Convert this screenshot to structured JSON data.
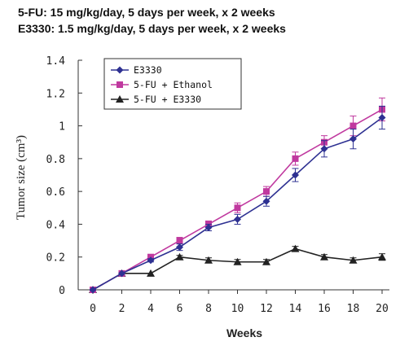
{
  "chart_data": {
    "type": "line",
    "title_lines": [
      "5-FU:    15 mg/kg/day, 5 days per week, x 2 weeks",
      "E3330: 1.5 mg/kg/day, 5 days per week, x 2 weeks"
    ],
    "xlabel": "Weeks",
    "ylabel": "Tumor size (cm³)",
    "xlim": [
      0,
      20
    ],
    "ylim": [
      0,
      1.4
    ],
    "x_ticks": [
      "0",
      "2",
      "4",
      "6",
      "8",
      "10",
      "12",
      "14",
      "16",
      "18",
      "20"
    ],
    "y_ticks": [
      "0",
      "0.2",
      "0.4",
      "0.6",
      "0.8",
      "1",
      "1.2",
      "1.4"
    ],
    "x": [
      0,
      2,
      4,
      6,
      8,
      10,
      12,
      14,
      16,
      18,
      20
    ],
    "grid": false,
    "legend_position": "top-left",
    "series": [
      {
        "name": "E3330",
        "color": "#2e3192",
        "marker": "diamond",
        "values": [
          0,
          0.1,
          0.18,
          0.26,
          0.38,
          0.43,
          0.54,
          0.7,
          0.86,
          0.92,
          1.05
        ],
        "errors": [
          0,
          0,
          0.01,
          0.02,
          0.02,
          0.03,
          0.03,
          0.04,
          0.05,
          0.06,
          0.07
        ]
      },
      {
        "name": "5-FU + Ethanol",
        "color": "#c0399f",
        "marker": "square",
        "values": [
          0,
          0.1,
          0.2,
          0.3,
          0.4,
          0.5,
          0.6,
          0.8,
          0.9,
          1.0,
          1.1
        ],
        "errors": [
          0,
          0,
          0.01,
          0.02,
          0.02,
          0.03,
          0.03,
          0.04,
          0.04,
          0.06,
          0.07
        ]
      },
      {
        "name": "5-FU + E3330",
        "color": "#222222",
        "marker": "triangle",
        "values": [
          0,
          0.1,
          0.1,
          0.2,
          0.18,
          0.17,
          0.17,
          0.25,
          0.2,
          0.18,
          0.2
        ],
        "errors": [
          0,
          0,
          0,
          0.01,
          0.015,
          0.015,
          0.015,
          0.015,
          0.015,
          0.015,
          0.02
        ]
      }
    ]
  }
}
